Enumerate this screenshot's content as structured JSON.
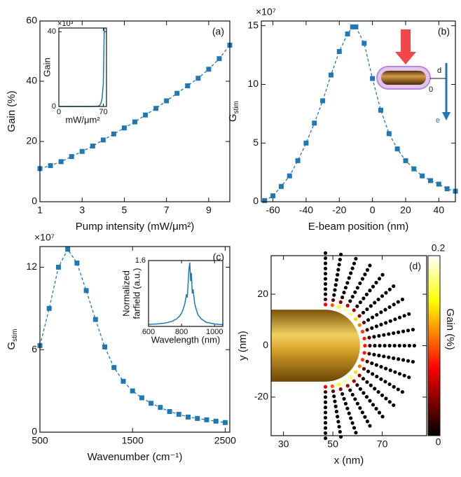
{
  "chart_data": [
    {
      "type": "line",
      "panel_label": "(a)",
      "xlabel": "Pump intensity (mW/μm²)",
      "ylabel": "Gain (%)",
      "color": "#1f77b4",
      "dashed": true,
      "marker": true,
      "x": [
        1,
        1.5,
        2,
        2.5,
        3,
        3.5,
        4,
        4.5,
        5,
        5.5,
        6,
        6.5,
        7,
        7.5,
        8,
        8.5,
        9,
        9.5,
        10
      ],
      "values": [
        11,
        12,
        13.3,
        15,
        16.7,
        18.5,
        20.5,
        22.5,
        24.5,
        26.5,
        28.8,
        31,
        33.5,
        36,
        38.5,
        41,
        44,
        47.5,
        52
      ],
      "xlim": [
        1,
        10
      ],
      "ylim": [
        0,
        60
      ],
      "xticks": [
        1,
        3,
        5,
        7,
        9
      ],
      "yticks": [
        0,
        20,
        40,
        60
      ]
    },
    {
      "type": "line",
      "xlabel": "mW/μm²",
      "ylabel": "Gain",
      "exponent": "×10³",
      "color": "#1f77b4",
      "dashed": false,
      "marker": false,
      "x": [
        0,
        10,
        20,
        30,
        40,
        50,
        60,
        62,
        64,
        66,
        68,
        70,
        71.5
      ],
      "values": [
        0,
        0,
        0,
        0,
        0,
        0,
        0.1,
        0.2,
        0.5,
        1.5,
        4,
        12,
        42
      ],
      "xlim": [
        0,
        75
      ],
      "ylim": [
        0,
        42
      ],
      "xticks": [
        0,
        70
      ],
      "yticks": [
        0,
        40
      ]
    },
    {
      "type": "line",
      "panel_label": "(b)",
      "xlabel": "E-beam position (nm)",
      "ylabel": "G",
      "ylabel_sub": "stim",
      "exponent": "×10⁷",
      "color": "#1f77b4",
      "dashed": true,
      "marker": true,
      "x": [
        -65,
        -60,
        -55,
        -50,
        -45,
        -40,
        -35,
        -30,
        -25,
        -20,
        -15,
        -12,
        -10,
        -5,
        0,
        5,
        10,
        15,
        20,
        25,
        30,
        35,
        40,
        45,
        50
      ],
      "values": [
        0.1,
        0.5,
        1.3,
        2.2,
        3.5,
        5,
        6.7,
        8.6,
        10.8,
        12.8,
        14.3,
        14.9,
        14.9,
        13.5,
        10.5,
        7.8,
        5.8,
        4.5,
        3.5,
        2.8,
        2.2,
        1.8,
        1.5,
        1.1,
        0.9
      ],
      "xlim": [
        -67,
        50
      ],
      "ylim": [
        0,
        15.4
      ],
      "xticks": [
        -60,
        -40,
        -20,
        0,
        20,
        40
      ],
      "yticks": [
        0,
        5,
        10,
        15
      ],
      "annotations": [
        "d",
        "0",
        "e"
      ]
    },
    {
      "type": "line",
      "panel_label": "(c)",
      "xlabel": "Wavenumber (cm⁻¹)",
      "ylabel": "G",
      "ylabel_sub": "stim",
      "exponent": "×10⁷",
      "color": "#1f77b4",
      "dashed": true,
      "marker": true,
      "x": [
        500,
        600,
        700,
        800,
        900,
        1000,
        1100,
        1200,
        1300,
        1400,
        1500,
        1600,
        1700,
        1800,
        1900,
        2000,
        2100,
        2200,
        2300,
        2400,
        2500
      ],
      "values": [
        6.3,
        9,
        12,
        13.3,
        12.3,
        10.3,
        8.2,
        6.2,
        4.7,
        3.7,
        3,
        2.5,
        2.1,
        1.8,
        1.5,
        1.3,
        1.1,
        1,
        0.9,
        0.8,
        0.7
      ],
      "xlim": [
        500,
        2550
      ],
      "ylim": [
        0,
        13.5
      ],
      "xticks": [
        500,
        1500,
        2500
      ],
      "yticks": [
        0,
        6,
        12
      ]
    },
    {
      "type": "line",
      "xlabel": "Wavelength (nm)",
      "ylabel": [
        "Normalized",
        "farfield (a.u.)"
      ],
      "color": "#1f77b4",
      "dashed": false,
      "marker": false,
      "x": [
        600,
        650,
        700,
        740,
        770,
        790,
        800,
        810,
        820,
        830,
        835,
        840,
        845,
        850,
        855,
        860,
        865,
        870,
        880,
        890,
        900,
        920,
        950,
        1000,
        1050
      ],
      "values": [
        0.05,
        0.06,
        0.08,
        0.12,
        0.18,
        0.26,
        0.32,
        0.42,
        0.55,
        0.78,
        0.7,
        1.05,
        1.4,
        1.55,
        1.1,
        1.3,
        0.8,
        0.9,
        0.55,
        0.4,
        0.28,
        0.18,
        0.1,
        0.06,
        0.04
      ],
      "xlim": [
        600,
        1050
      ],
      "ylim": [
        0,
        1.6
      ],
      "xticks": [
        600,
        800,
        1000
      ],
      "yticks": [
        1.6
      ]
    },
    {
      "type": "dots",
      "panel_label": "(d)",
      "xlabel": "x (nm)",
      "ylabel": "y (nm)",
      "clabel": "Gain (%)",
      "center": [
        47,
        0
      ],
      "angles": [
        -90,
        -80,
        -70,
        -60,
        -50,
        -40,
        -30,
        -20,
        -10,
        0,
        10,
        20,
        30,
        40,
        50,
        60,
        70,
        80,
        90
      ],
      "radii": [
        16,
        18,
        20,
        22,
        24,
        26,
        28,
        30,
        32,
        34,
        36
      ],
      "gain": [
        [
          0.07,
          0.02,
          0,
          0,
          0,
          0,
          0,
          0,
          0,
          0,
          0
        ],
        [
          0.1,
          0.03,
          0,
          0,
          0,
          0,
          0,
          0,
          0,
          0,
          0
        ],
        [
          0.15,
          0.04,
          0.01,
          0,
          0,
          0,
          0,
          0,
          0,
          0,
          0
        ],
        [
          0.18,
          0.05,
          0.01,
          0,
          0,
          0,
          0,
          0,
          0,
          0,
          0
        ],
        [
          0.17,
          0.05,
          0.01,
          0,
          0,
          0,
          0,
          0,
          0,
          0,
          0
        ],
        [
          0.14,
          0.04,
          0,
          0,
          0,
          0,
          0,
          0,
          0,
          0,
          0
        ],
        [
          0.11,
          0.03,
          0,
          0,
          0,
          0,
          0,
          0,
          0,
          0,
          0
        ],
        [
          0.09,
          0.02,
          0,
          0,
          0,
          0,
          0,
          0,
          0,
          0,
          0
        ],
        [
          0.08,
          0.02,
          0,
          0,
          0,
          0,
          0,
          0,
          0,
          0,
          0
        ],
        [
          0.08,
          0.02,
          0,
          0,
          0,
          0,
          0,
          0,
          0,
          0,
          0
        ],
        [
          0.08,
          0.02,
          0,
          0,
          0,
          0,
          0,
          0,
          0,
          0,
          0
        ],
        [
          0.09,
          0.02,
          0,
          0,
          0,
          0,
          0,
          0,
          0,
          0,
          0
        ],
        [
          0.11,
          0.03,
          0,
          0,
          0,
          0,
          0,
          0,
          0,
          0,
          0
        ],
        [
          0.14,
          0.04,
          0,
          0,
          0,
          0,
          0,
          0,
          0,
          0,
          0
        ],
        [
          0.17,
          0.05,
          0.01,
          0,
          0,
          0,
          0,
          0,
          0,
          0,
          0
        ],
        [
          0.18,
          0.05,
          0.01,
          0,
          0,
          0,
          0,
          0,
          0,
          0,
          0
        ],
        [
          0.15,
          0.04,
          0.01,
          0,
          0,
          0,
          0,
          0,
          0,
          0,
          0
        ],
        [
          0.1,
          0.03,
          0,
          0,
          0,
          0,
          0,
          0,
          0,
          0,
          0
        ],
        [
          0.07,
          0.02,
          0,
          0,
          0,
          0,
          0,
          0,
          0,
          0,
          0
        ]
      ],
      "xlim": [
        25,
        88
      ],
      "ylim": [
        -35,
        35
      ],
      "xticks": [
        30,
        50,
        70
      ],
      "yticks": [
        -20,
        0,
        20
      ],
      "clim": [
        0,
        0.2
      ],
      "cticks": [
        0,
        0.2
      ]
    }
  ]
}
